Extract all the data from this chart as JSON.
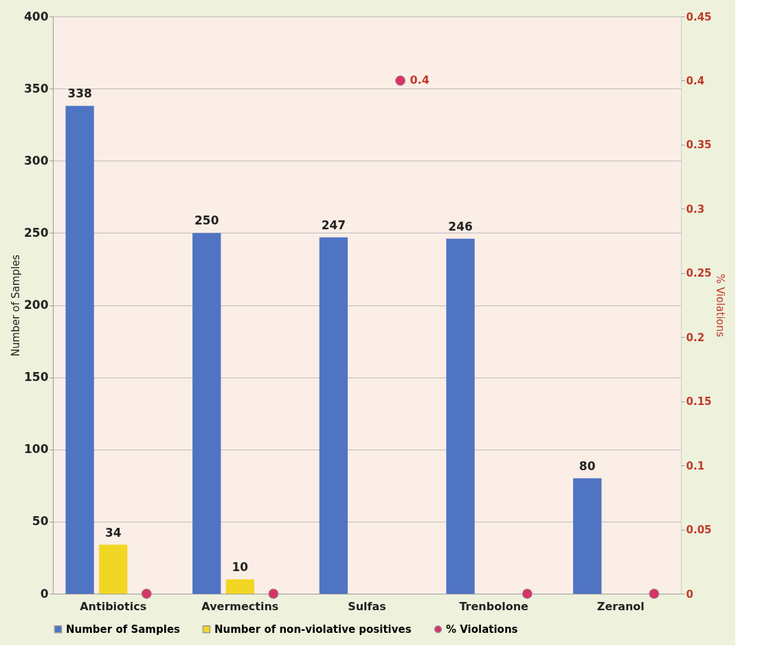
{
  "chart_data": {
    "type": "bar",
    "categories": [
      "Antibiotics",
      "Avermectins",
      "Sulfas",
      "Trenbolone",
      "Zeranol"
    ],
    "series": [
      {
        "name": "Number of Samples",
        "color": "#4f74c4",
        "values": [
          338,
          250,
          247,
          246,
          80
        ],
        "value_labels": [
          "338",
          "250",
          "247",
          "246",
          "80"
        ]
      },
      {
        "name": "Number of non-violative positives",
        "color": "#f2d624",
        "values": [
          34,
          10,
          null,
          null,
          null
        ],
        "value_labels": [
          "34",
          "10",
          null,
          null,
          null
        ]
      },
      {
        "name": "% Violations",
        "type": "scatter",
        "axis": "y2",
        "color": "#d6336b",
        "values": [
          0,
          0,
          0.4,
          0,
          0
        ],
        "value_labels": [
          null,
          null,
          "0.4",
          null,
          null
        ]
      }
    ],
    "ylabel": "Number of Samples",
    "y2label": "% Violations",
    "ylim": [
      0,
      400
    ],
    "yticks": [
      0,
      50,
      100,
      150,
      200,
      250,
      300,
      350,
      400
    ],
    "y2lim": [
      0,
      0.45
    ],
    "y2ticks": [
      0,
      0.05,
      0.1,
      0.15,
      0.2,
      0.25,
      0.3,
      0.35,
      0.4,
      0.45
    ],
    "grid": "y",
    "legend": "bottom",
    "marker": "circle"
  }
}
